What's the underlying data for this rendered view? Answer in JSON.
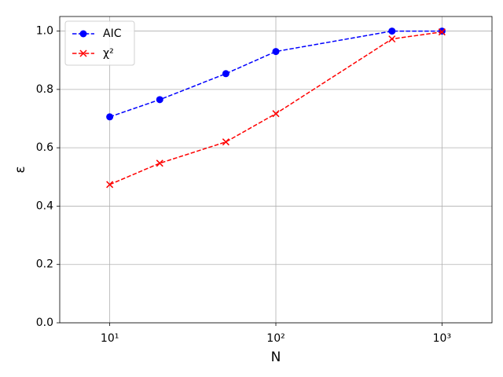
{
  "chart_data": {
    "type": "line",
    "xlabel": "N",
    "ylabel": "ε",
    "x": [
      10,
      20,
      50,
      100,
      500,
      1000
    ],
    "series": [
      {
        "name": "AIC",
        "color": "#0000ff",
        "marker": "o",
        "values": [
          0.706,
          0.765,
          0.854,
          0.93,
          1.0,
          1.0
        ]
      },
      {
        "name": "χ²",
        "color": "#ff0000",
        "marker": "x",
        "values": [
          0.474,
          0.547,
          0.62,
          0.717,
          0.973,
          0.997
        ]
      }
    ],
    "xscale": "log",
    "xlim": [
      5,
      2000
    ],
    "xticks": [
      {
        "value": 10,
        "label": "10¹"
      },
      {
        "value": 100,
        "label": "10²"
      },
      {
        "value": 1000,
        "label": "10³"
      }
    ],
    "ylim": [
      0,
      1.05
    ],
    "yticks": [
      {
        "value": 0,
        "label": "0.0"
      },
      {
        "value": 0.2,
        "label": "0.2"
      },
      {
        "value": 0.4,
        "label": "0.4"
      },
      {
        "value": 0.6,
        "label": "0.6"
      },
      {
        "value": 0.8,
        "label": "0.8"
      },
      {
        "value": 1,
        "label": "1.0"
      }
    ],
    "grid": true,
    "legend": "upper left"
  }
}
